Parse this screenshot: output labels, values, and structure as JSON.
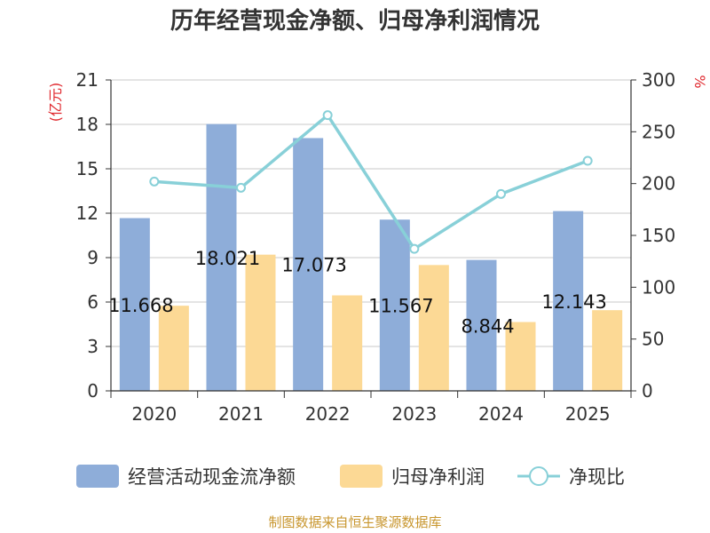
{
  "title": "历年经营现金净额、归母净利润情况",
  "source": "制图数据来自恒生聚源数据库",
  "colors": {
    "bar_cash": "#8eadd9",
    "bar_profit": "#fcd995",
    "line_ratio": "#88d0d8",
    "unit_red": "#e0282e",
    "source_text": "#c8962e",
    "grid": "#c8c8c8",
    "axis": "#333333"
  },
  "chart_data": {
    "type": "bar+line",
    "title": "历年经营现金净额、归母净利润情况",
    "categories": [
      "2020",
      "2021",
      "2022",
      "2023",
      "2024",
      "2025"
    ],
    "left_axis": {
      "unit": "(亿元)",
      "ylim": [
        0,
        21
      ],
      "ticks": [
        "0",
        "3",
        "6",
        "9",
        "12",
        "15",
        "18",
        "21"
      ]
    },
    "right_axis": {
      "unit": "%",
      "ylim": [
        0,
        300
      ],
      "ticks": [
        "0",
        "50",
        "100",
        "150",
        "200",
        "250",
        "300"
      ]
    },
    "grid": true,
    "legend_position": "bottom",
    "series": [
      {
        "name": "经营活动现金流净额",
        "type": "bar",
        "axis": "left",
        "values": [
          11.668,
          18.021,
          17.073,
          11.567,
          8.844,
          12.143
        ],
        "labels": [
          "11.668",
          "18.021",
          "17.073",
          "11.567",
          "8.844",
          "12.143"
        ]
      },
      {
        "name": "归母净利润",
        "type": "bar",
        "axis": "left",
        "values": [
          5.75,
          9.2,
          6.45,
          8.5,
          4.65,
          5.45
        ]
      },
      {
        "name": "净现比",
        "type": "line",
        "axis": "right",
        "values": [
          202,
          196,
          266,
          137,
          190,
          222
        ]
      }
    ]
  }
}
